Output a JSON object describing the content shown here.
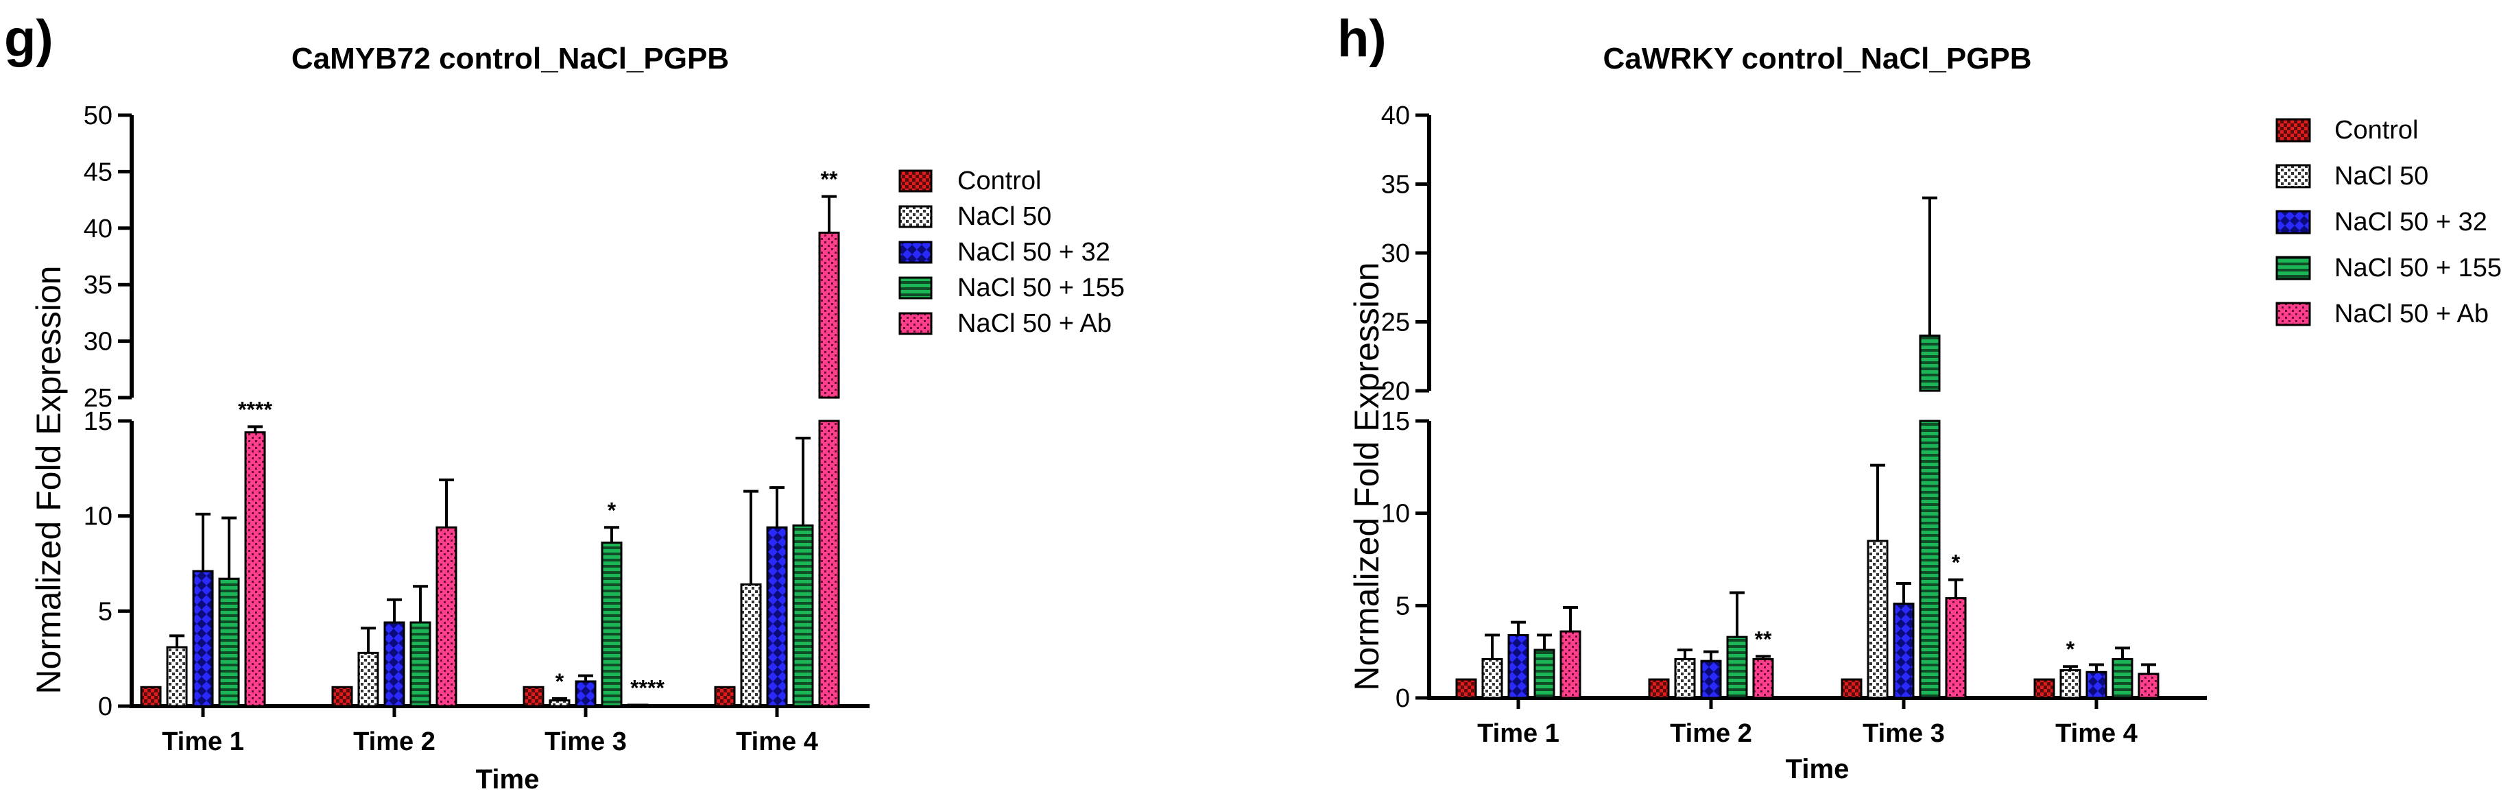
{
  "series_styles": [
    {
      "name": "Control",
      "color": "#e01b1b",
      "pattern": "checker"
    },
    {
      "name": "NaCl 50",
      "color": "#bdbdbd",
      "pattern": "dots"
    },
    {
      "name": "NaCl 50 + 32",
      "color": "#1f1ff0",
      "pattern": "diamonds"
    },
    {
      "name": "NaCl 50 + 155",
      "color": "#17a84e",
      "pattern": "hlines"
    },
    {
      "name": "NaCl 50 + Ab",
      "color": "#ff3f8c",
      "pattern": "dotgrid"
    }
  ],
  "chart_data": [
    {
      "panel": "g)",
      "type": "bar",
      "title": "CaMYB72 control_NaCl_PGPB",
      "ylabel": "Normalized Fold Expression",
      "xlabel": "Time",
      "categories": [
        "Time 1",
        "Time 2",
        "Time 3",
        "Time 4"
      ],
      "broken_axis": true,
      "ylim_lower": [
        0,
        15
      ],
      "ylim_upper": [
        25,
        50
      ],
      "yticks_lower": [
        0,
        5,
        10,
        15
      ],
      "yticks_upper": [
        25,
        30,
        35,
        40,
        45,
        50
      ],
      "legend_position": "top-right (inside)",
      "series": [
        {
          "name": "Control",
          "values": [
            1.0,
            1.0,
            1.0,
            1.0
          ],
          "errors": [
            0,
            0,
            0,
            0
          ],
          "significance": [
            "",
            "",
            "",
            ""
          ]
        },
        {
          "name": "NaCl 50",
          "values": [
            3.1,
            2.8,
            0.3,
            6.4
          ],
          "errors": [
            0.6,
            1.3,
            0.1,
            4.9
          ],
          "significance": [
            "",
            "",
            "*",
            ""
          ]
        },
        {
          "name": "NaCl 50 + 32",
          "values": [
            7.1,
            4.4,
            1.3,
            9.4
          ],
          "errors": [
            3.0,
            1.2,
            0.3,
            2.1
          ],
          "significance": [
            "",
            "",
            "",
            ""
          ]
        },
        {
          "name": "NaCl 50 + 155",
          "values": [
            6.7,
            4.4,
            8.6,
            9.5
          ],
          "errors": [
            3.2,
            1.9,
            0.8,
            4.6
          ],
          "significance": [
            "",
            "",
            "*",
            ""
          ]
        },
        {
          "name": "NaCl 50 + Ab",
          "values": [
            14.4,
            9.4,
            0.05,
            39.6
          ],
          "errors": [
            0.3,
            2.5,
            0,
            3.2
          ],
          "significance": [
            "****",
            "",
            "****",
            "**"
          ]
        }
      ]
    },
    {
      "panel": "h)",
      "type": "bar",
      "title": "CaWRKY control_NaCl_PGPB",
      "ylabel": "Normalized Fold Expression",
      "xlabel": "Time",
      "categories": [
        "Time 1",
        "Time 2",
        "Time 3",
        "Time 4"
      ],
      "broken_axis": true,
      "ylim_lower": [
        0,
        15
      ],
      "ylim_upper": [
        20,
        40
      ],
      "yticks_lower": [
        0,
        5,
        10,
        15
      ],
      "yticks_upper": [
        20,
        25,
        30,
        35,
        40
      ],
      "legend_position": "right (outside)",
      "series": [
        {
          "name": "Control",
          "values": [
            1.0,
            1.0,
            1.0,
            1.0
          ],
          "errors": [
            0,
            0,
            0,
            0
          ],
          "significance": [
            "",
            "",
            "",
            ""
          ]
        },
        {
          "name": "NaCl 50",
          "values": [
            2.1,
            2.1,
            8.5,
            1.5
          ],
          "errors": [
            1.3,
            0.5,
            4.1,
            0.2
          ],
          "significance": [
            "",
            "",
            "",
            "*"
          ]
        },
        {
          "name": "NaCl 50 + 32",
          "values": [
            3.4,
            2.0,
            5.1,
            1.4
          ],
          "errors": [
            0.7,
            0.5,
            1.1,
            0.4
          ],
          "significance": [
            "",
            "",
            "",
            ""
          ]
        },
        {
          "name": "NaCl 50 + 155",
          "values": [
            2.6,
            3.3,
            24.0,
            2.1
          ],
          "errors": [
            0.8,
            2.4,
            10.0,
            0.6
          ],
          "significance": [
            "",
            "",
            "",
            ""
          ]
        },
        {
          "name": "NaCl 50 + Ab",
          "values": [
            3.6,
            2.1,
            5.4,
            1.3
          ],
          "errors": [
            1.3,
            0.15,
            1.0,
            0.5
          ],
          "significance": [
            "",
            "**",
            "*",
            ""
          ]
        }
      ]
    }
  ]
}
